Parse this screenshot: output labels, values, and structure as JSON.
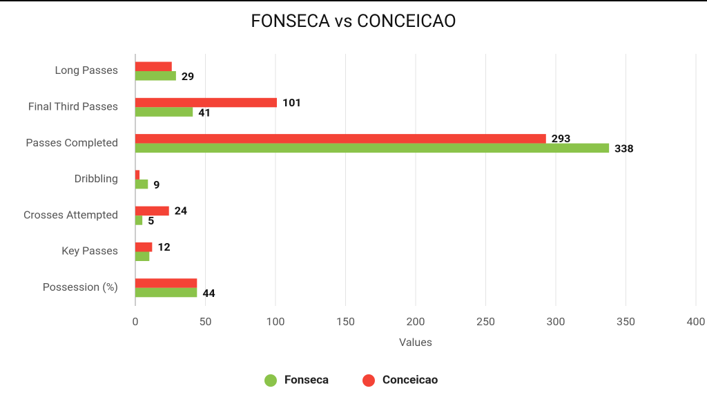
{
  "chart_data": {
    "type": "bar",
    "orientation": "horizontal",
    "title": "FONSECA vs CONCEICAO",
    "x_label": "Values",
    "categories": [
      "Long Passes",
      "Final Third Passes",
      "Passes Completed",
      "Dribbling",
      "Crosses Attempted",
      "Key Passes",
      "Possession (%)"
    ],
    "series": [
      {
        "name": "Fonseca",
        "color": "#8bc34a",
        "values": [
          29,
          41,
          338,
          9,
          5,
          10,
          44
        ],
        "value_labels": [
          "29",
          "41",
          "338",
          "9",
          "5",
          null,
          "44"
        ]
      },
      {
        "name": "Conceicao",
        "color": "#f44336",
        "values": [
          26,
          101,
          293,
          3,
          24,
          12,
          44
        ],
        "value_labels": [
          null,
          "101",
          "293",
          null,
          "24",
          "12",
          null
        ]
      }
    ],
    "xlim": [
      0,
      400
    ],
    "xticks": [
      0,
      50,
      100,
      150,
      200,
      250,
      300,
      350,
      400
    ],
    "grid": true,
    "legend": "bottom"
  }
}
